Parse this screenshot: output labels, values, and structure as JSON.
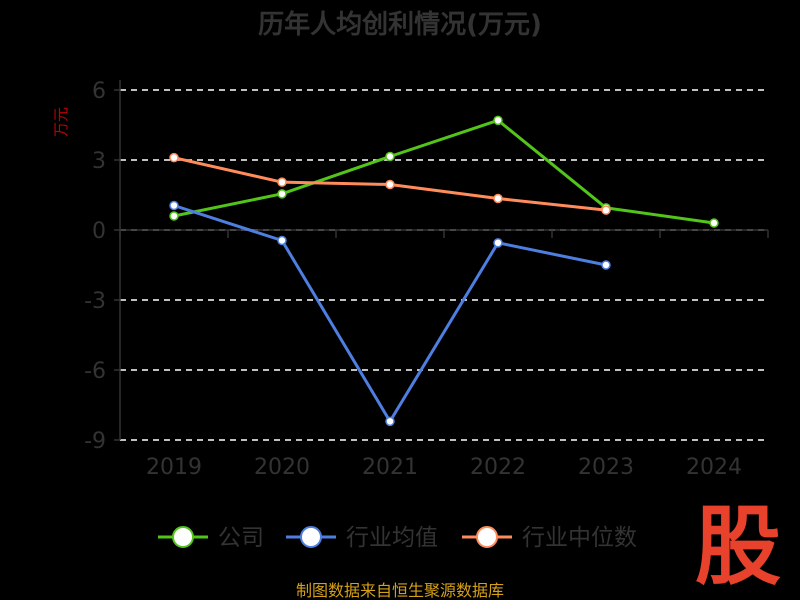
{
  "chart_data": {
    "type": "line",
    "title": "历年人均创利情况(万元)",
    "ylabel": "万元",
    "xlabel": "",
    "categories": [
      "2019",
      "2020",
      "2021",
      "2022",
      "2023",
      "2024"
    ],
    "y_ticks": [
      "6",
      "3",
      "0",
      "-3",
      "-6",
      "-9"
    ],
    "ylim": [
      -9,
      6
    ],
    "grid": true,
    "legend_position": "bottom",
    "series": [
      {
        "name": "公司",
        "color": "#52c41a",
        "values": [
          0.6,
          1.55,
          3.15,
          4.7,
          0.95,
          0.3
        ]
      },
      {
        "name": "行业均值",
        "color": "#4e7fe0",
        "values": [
          1.05,
          -0.45,
          -8.2,
          -0.55,
          -1.5,
          null
        ]
      },
      {
        "name": "行业中位数",
        "color": "#ff8c5a",
        "values": [
          3.1,
          2.05,
          1.95,
          1.35,
          0.85,
          null
        ]
      }
    ]
  },
  "source_text": "制图数据来自恒生聚源数据库",
  "logo_text": "股"
}
